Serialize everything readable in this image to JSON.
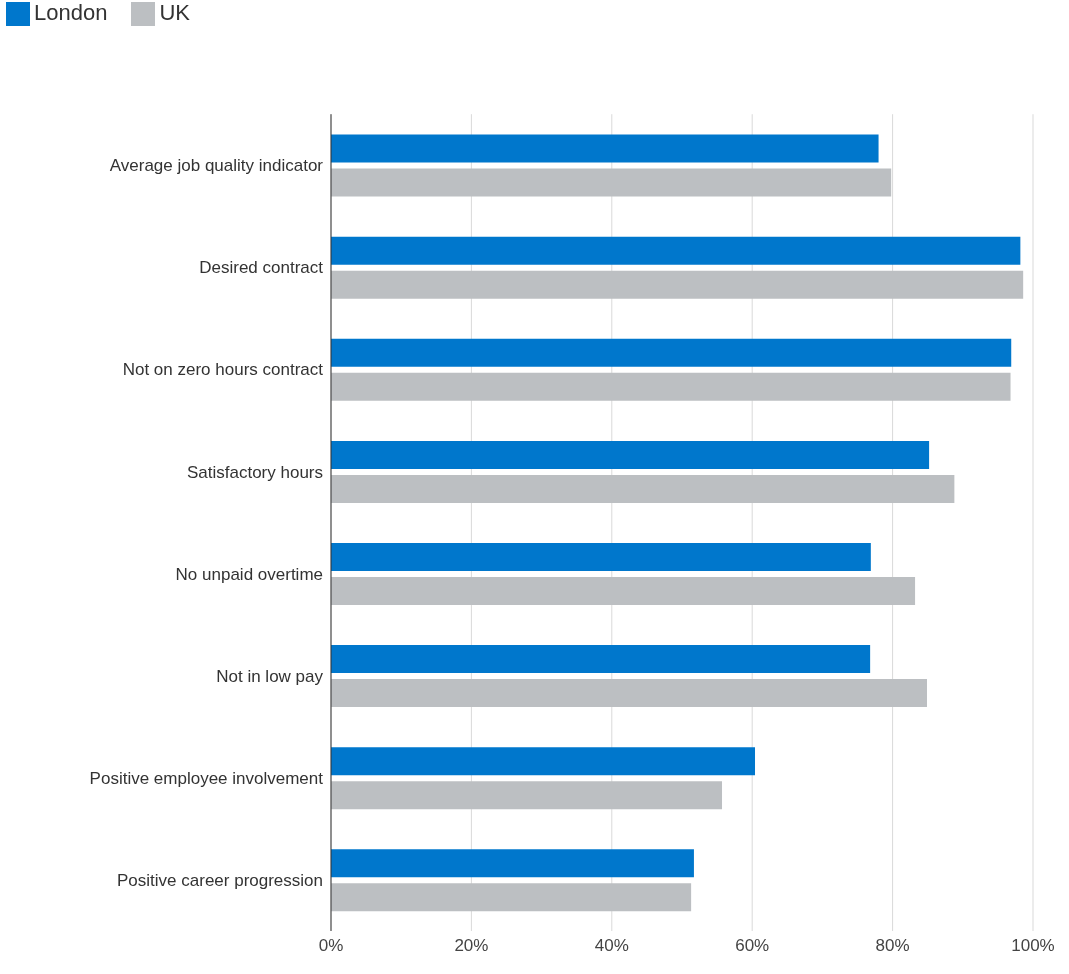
{
  "chart_data": {
    "type": "bar",
    "orientation": "horizontal",
    "categories": [
      "Average job quality indicator",
      "Desired contract",
      "Not on zero hours contract",
      "Satisfactory hours",
      "No unpaid overtime",
      "Not in low pay",
      "Positive employee involvement",
      "Positive career progression"
    ],
    "series": [
      {
        "name": "London",
        "color": "#0077cc",
        "values": [
          78.0,
          98.2,
          96.9,
          85.2,
          76.9,
          76.8,
          60.4,
          51.7
        ]
      },
      {
        "name": "UK",
        "color": "#bcbfc2",
        "values": [
          79.8,
          98.6,
          96.8,
          88.8,
          83.2,
          84.9,
          55.7,
          51.3
        ]
      }
    ],
    "xlim": [
      0,
      100
    ],
    "xticks": [
      {
        "value": 0,
        "label": "0%"
      },
      {
        "value": 20,
        "label": "20%"
      },
      {
        "value": 40,
        "label": "40%"
      },
      {
        "value": 60,
        "label": "60%"
      },
      {
        "value": 80,
        "label": "80%"
      },
      {
        "value": 100,
        "label": "100%"
      }
    ],
    "grid": "x",
    "legend": "top left"
  }
}
